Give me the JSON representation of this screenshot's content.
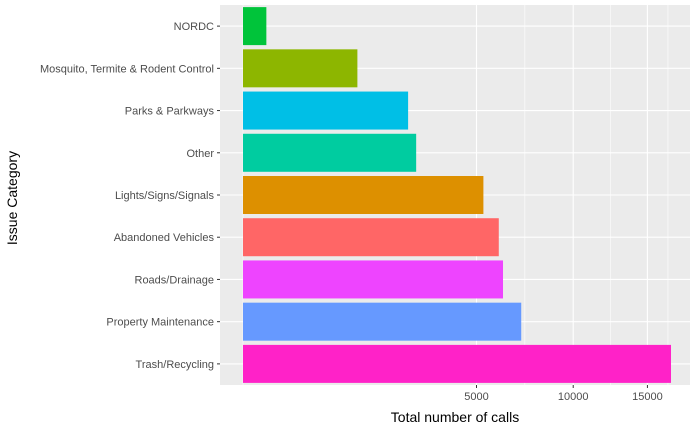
{
  "chart_data": {
    "type": "bar",
    "orientation": "horizontal",
    "xlabel": "Total number of calls",
    "ylabel": "Issue Category",
    "x_scale": "sqrt",
    "x_ticks": [
      5000,
      10000,
      15000
    ],
    "xlim": [
      0,
      18200
    ],
    "grid": true,
    "legend": "none",
    "categories": [
      "Trash/Recycling",
      "Property Maintenance",
      "Roads/Drainage",
      "Abandoned Vehicles",
      "Lights/Signs/Signals",
      "Other",
      "Parks & Parkways",
      "Mosquito, Termite & Rodent Control",
      "NORDC"
    ],
    "values": [
      16800,
      7100,
      6200,
      6000,
      5300,
      2750,
      2500,
      1200,
      50
    ],
    "colors": [
      "#ff22c8",
      "#6699ff",
      "#ee44ff",
      "#ff6666",
      "#dd9000",
      "#00cca0",
      "#00bfe6",
      "#8db600",
      "#00c43a"
    ]
  }
}
